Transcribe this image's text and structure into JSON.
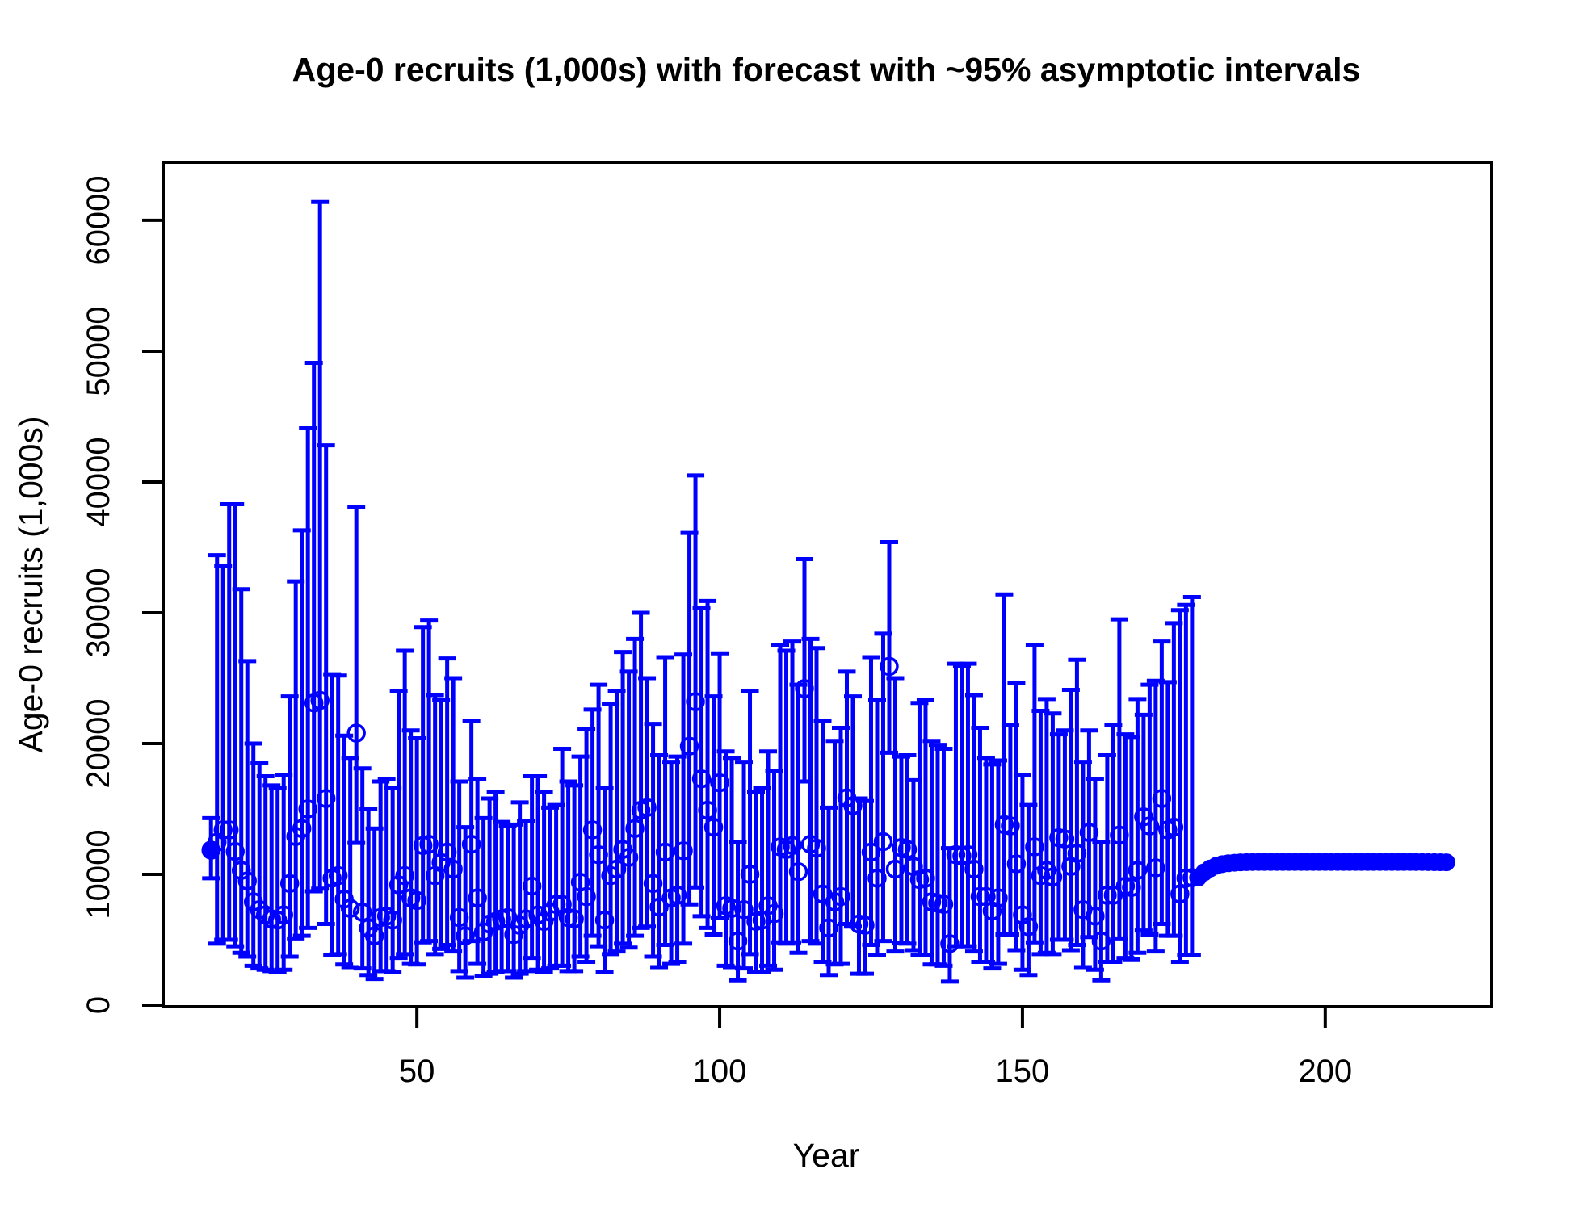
{
  "title": "Age-0 recruits (1,000s) with forecast with ~95% asymptotic intervals",
  "xlabel": "Year",
  "ylabel": "Age-0 recruits (1,000s)",
  "colors": {
    "series": "#0000ff",
    "axis": "#000000",
    "background": "#ffffff"
  },
  "chart_data": {
    "type": "scatter",
    "title": "Age-0 recruits (1,000s) with forecast with ~95% asymptotic intervals",
    "xlabel": "Year",
    "ylabel": "Age-0 recruits (1,000s)",
    "xlim": [
      8.1,
      227.5
    ],
    "ylim": [
      0,
      64440
    ],
    "grid": false,
    "legend": "none",
    "xticks": [
      {
        "value": 50,
        "label": "50"
      },
      {
        "value": 100,
        "label": "100"
      },
      {
        "value": 150,
        "label": "150"
      },
      {
        "value": 200,
        "label": "200"
      }
    ],
    "yticks": [
      {
        "value": 0,
        "label": "0"
      },
      {
        "value": 10000,
        "label": "10000"
      },
      {
        "value": 20000,
        "label": "20000"
      },
      {
        "value": 30000,
        "label": "30000"
      },
      {
        "value": 40000,
        "label": "40000"
      },
      {
        "value": 50000,
        "label": "50000"
      },
      {
        "value": 60000,
        "label": "60000"
      }
    ],
    "series": [
      {
        "name": "estimates-with-95pct-intervals",
        "marker": "open-circle",
        "color": "#0000ff",
        "start_year": 16,
        "first_point_filled": true,
        "points_format": [
          "estimate",
          "lower95",
          "upper95"
        ],
        "points": [
          [
            11850,
            9700,
            14300
          ],
          [
            12450,
            4700,
            34400
          ],
          [
            13400,
            5000,
            33600
          ],
          [
            13400,
            5000,
            38300
          ],
          [
            11750,
            4500,
            38300
          ],
          [
            10300,
            4000,
            31800
          ],
          [
            9500,
            3700,
            26300
          ],
          [
            7900,
            3000,
            20000
          ],
          [
            7300,
            2800,
            18500
          ],
          [
            6900,
            2700,
            17500
          ],
          [
            6600,
            2600,
            16800
          ],
          [
            6500,
            2500,
            16600
          ],
          [
            6900,
            2700,
            17600
          ],
          [
            9300,
            3700,
            23600
          ],
          [
            12900,
            5100,
            32400
          ],
          [
            13500,
            5300,
            36300
          ],
          [
            15000,
            5900,
            44100
          ],
          [
            23100,
            8700,
            49100
          ],
          [
            23300,
            8900,
            61400
          ],
          [
            15800,
            6200,
            42800
          ],
          [
            9700,
            3800,
            25300
          ],
          [
            9900,
            3900,
            25200
          ],
          [
            8100,
            3100,
            20600
          ],
          [
            7400,
            2900,
            18900
          ],
          [
            20800,
            12400,
            38100
          ],
          [
            7100,
            2800,
            18100
          ],
          [
            5900,
            2300,
            15000
          ],
          [
            5300,
            2000,
            13500
          ],
          [
            6700,
            2600,
            17100
          ],
          [
            6800,
            2600,
            17300
          ],
          [
            6500,
            2500,
            16600
          ],
          [
            9200,
            3600,
            24000
          ],
          [
            9900,
            3900,
            27100
          ],
          [
            8200,
            3200,
            21000
          ],
          [
            8000,
            3100,
            20400
          ],
          [
            12200,
            4800,
            28900
          ],
          [
            12300,
            4900,
            29400
          ],
          [
            9900,
            3900,
            23700
          ],
          [
            10900,
            4300,
            23300
          ],
          [
            11700,
            4600,
            26500
          ],
          [
            10400,
            4100,
            25000
          ],
          [
            6700,
            2600,
            17100
          ],
          [
            5300,
            2100,
            13600
          ],
          [
            12300,
            4900,
            21700
          ],
          [
            8200,
            3200,
            17300
          ],
          [
            5600,
            2200,
            14300
          ],
          [
            6200,
            2400,
            15800
          ],
          [
            6400,
            2500,
            16300
          ],
          [
            6600,
            2600,
            14000
          ],
          [
            6700,
            2600,
            13700
          ],
          [
            5400,
            2100,
            13800
          ],
          [
            6100,
            2400,
            15500
          ],
          [
            6600,
            2600,
            14100
          ],
          [
            9100,
            3600,
            17500
          ],
          [
            6900,
            2700,
            17500
          ],
          [
            6400,
            2500,
            16300
          ],
          [
            7100,
            2800,
            15100
          ],
          [
            7700,
            3000,
            15300
          ],
          [
            7700,
            3000,
            19600
          ],
          [
            6700,
            2600,
            17100
          ],
          [
            6600,
            2600,
            16800
          ],
          [
            9400,
            3700,
            19000
          ],
          [
            8300,
            3300,
            21100
          ],
          [
            13400,
            5300,
            22600
          ],
          [
            11500,
            4500,
            24500
          ],
          [
            6500,
            2500,
            16600
          ],
          [
            9900,
            3900,
            23000
          ],
          [
            10400,
            4100,
            24000
          ],
          [
            11900,
            4700,
            27000
          ],
          [
            11300,
            4400,
            25500
          ],
          [
            13500,
            5300,
            28000
          ],
          [
            14900,
            5900,
            30000
          ],
          [
            15100,
            6000,
            25000
          ],
          [
            9300,
            3700,
            21500
          ],
          [
            7500,
            2900,
            19100
          ],
          [
            11700,
            4600,
            26600
          ],
          [
            8200,
            3200,
            18600
          ],
          [
            8400,
            3300,
            19000
          ],
          [
            11800,
            4700,
            26800
          ],
          [
            19800,
            7700,
            36100
          ],
          [
            23200,
            9000,
            40500
          ],
          [
            17300,
            6800,
            30400
          ],
          [
            14900,
            5900,
            30900
          ],
          [
            13600,
            5400,
            23600
          ],
          [
            17000,
            6700,
            26900
          ],
          [
            7600,
            3000,
            19400
          ],
          [
            7400,
            2900,
            18900
          ],
          [
            4900,
            1900,
            12500
          ],
          [
            7300,
            2800,
            18600
          ],
          [
            10000,
            3900,
            24000
          ],
          [
            6400,
            2500,
            16300
          ],
          [
            6500,
            2500,
            16600
          ],
          [
            7600,
            3000,
            19400
          ],
          [
            7000,
            2700,
            17900
          ],
          [
            12100,
            4800,
            27500
          ],
          [
            11900,
            4700,
            27100
          ],
          [
            12200,
            4800,
            27800
          ],
          [
            10200,
            4000,
            24500
          ],
          [
            24200,
            17100,
            34100
          ],
          [
            12300,
            4900,
            28000
          ],
          [
            12000,
            4700,
            27300
          ],
          [
            8500,
            3300,
            21700
          ],
          [
            5900,
            2300,
            15100
          ],
          [
            7900,
            3100,
            20200
          ],
          [
            8300,
            3200,
            21200
          ],
          [
            15850,
            6200,
            25500
          ],
          [
            15250,
            6000,
            23600
          ],
          [
            6200,
            2400,
            15800
          ],
          [
            6100,
            2400,
            15600
          ],
          [
            11700,
            4600,
            26600
          ],
          [
            9700,
            3800,
            23300
          ],
          [
            12500,
            4900,
            28400
          ],
          [
            25900,
            19300,
            35400
          ],
          [
            10400,
            4100,
            25000
          ],
          [
            12050,
            4750,
            19000
          ],
          [
            11900,
            4700,
            19100
          ],
          [
            10600,
            4200,
            17200
          ],
          [
            9600,
            3800,
            23100
          ],
          [
            9700,
            3800,
            23300
          ],
          [
            7900,
            3100,
            20200
          ],
          [
            7800,
            3100,
            19900
          ],
          [
            7700,
            3000,
            19600
          ],
          [
            4700,
            1800,
            12000
          ],
          [
            11500,
            4500,
            26100
          ],
          [
            11400,
            4500,
            25900
          ],
          [
            11500,
            4500,
            26100
          ],
          [
            10400,
            4100,
            23700
          ],
          [
            8300,
            3300,
            21200
          ],
          [
            8300,
            3300,
            18900
          ],
          [
            7200,
            2800,
            18400
          ],
          [
            8200,
            3200,
            18700
          ],
          [
            13800,
            5400,
            31400
          ],
          [
            13700,
            5400,
            21400
          ],
          [
            10800,
            4200,
            24600
          ],
          [
            6900,
            2700,
            17600
          ],
          [
            6000,
            2300,
            15300
          ],
          [
            12100,
            4800,
            27500
          ],
          [
            9900,
            3900,
            22500
          ],
          [
            10300,
            4000,
            23400
          ],
          [
            9800,
            3900,
            22300
          ],
          [
            12800,
            5000,
            20700
          ],
          [
            12700,
            5000,
            21000
          ],
          [
            10600,
            4200,
            24100
          ],
          [
            11600,
            4600,
            26400
          ],
          [
            7300,
            2900,
            18600
          ],
          [
            13200,
            5200,
            21000
          ],
          [
            6800,
            2700,
            17300
          ],
          [
            4900,
            1900,
            12500
          ],
          [
            8400,
            3300,
            19100
          ],
          [
            8400,
            3300,
            21400
          ],
          [
            13000,
            5100,
            29500
          ],
          [
            9100,
            3600,
            20700
          ],
          [
            9000,
            3500,
            20500
          ],
          [
            10300,
            4000,
            23400
          ],
          [
            14400,
            5700,
            22200
          ],
          [
            13700,
            5400,
            24500
          ],
          [
            10500,
            4100,
            24800
          ],
          [
            15800,
            6200,
            27800
          ],
          [
            13400,
            5300,
            24700
          ],
          [
            13600,
            5300,
            29200
          ],
          [
            8500,
            3300,
            30200
          ],
          [
            9700,
            3800,
            30600
          ],
          [
            9750,
            3800,
            31200
          ]
        ]
      },
      {
        "name": "forecast",
        "marker": "filled-circle",
        "color": "#0000ff",
        "start_year": 179,
        "values": [
          9750,
          10150,
          10450,
          10650,
          10780,
          10850,
          10890,
          10915,
          10930,
          10940,
          10945,
          10945,
          10945,
          10945,
          10945,
          10945,
          10945,
          10945,
          10945,
          10945,
          10945,
          10945,
          10945,
          10945,
          10945,
          10945,
          10945,
          10945,
          10945,
          10945,
          10945,
          10945,
          10945,
          10945,
          10945,
          10945,
          10940,
          10940,
          10935,
          10930,
          10925,
          10920
        ]
      }
    ]
  }
}
